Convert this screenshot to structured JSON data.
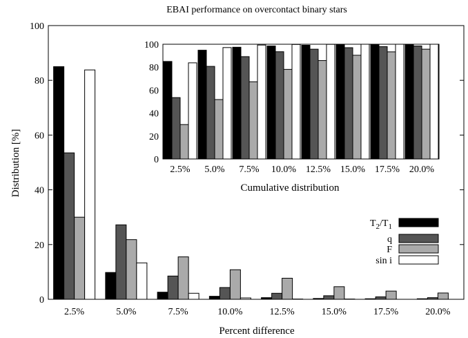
{
  "chart_data": [
    {
      "type": "bar",
      "title": "EBAI performance on overcontact binary stars",
      "xlabel": "Percent difference",
      "ylabel": "Distribution [%]",
      "ylim": [
        0,
        100
      ],
      "yticks": [
        0,
        20,
        40,
        60,
        80,
        100
      ],
      "categories": [
        "2.5%",
        "5.0%",
        "7.5%",
        "10.0%",
        "12.5%",
        "15.0%",
        "17.5%",
        "20.0%"
      ],
      "legend_position": "right",
      "series": [
        {
          "name": "T2/T1",
          "name_main": "T",
          "name_sub1": "2",
          "name_mid": "/T",
          "name_sub2": "1",
          "color": "#000000",
          "values": [
            85.0,
            9.8,
            2.6,
            1.1,
            0.6,
            0.3,
            0.2,
            0.2
          ]
        },
        {
          "name": "q",
          "color": "#555555",
          "values": [
            53.5,
            27.2,
            8.5,
            4.3,
            2.2,
            1.3,
            0.9,
            0.6
          ]
        },
        {
          "name": "F",
          "color": "#aaaaaa",
          "values": [
            30.0,
            21.8,
            15.5,
            10.8,
            7.7,
            4.6,
            3.0,
            2.3
          ]
        },
        {
          "name": "sin i",
          "color": "#ffffff",
          "values": [
            83.8,
            13.3,
            2.2,
            0.5,
            0.1,
            0.1,
            0.0,
            0.0
          ]
        }
      ]
    },
    {
      "type": "bar",
      "title": "",
      "xlabel": "Cumulative distribution",
      "ylabel": "",
      "ylim": [
        0,
        100
      ],
      "yticks": [
        0,
        20,
        40,
        60,
        80,
        100
      ],
      "categories": [
        "2.5%",
        "5.0%",
        "7.5%",
        "10.0%",
        "12.5%",
        "15.0%",
        "17.5%",
        "20.0%"
      ],
      "series": [
        {
          "name": "T2/T1",
          "color": "#000000",
          "values": [
            85.0,
            94.8,
            97.4,
            98.5,
            99.1,
            99.4,
            99.6,
            99.8
          ]
        },
        {
          "name": "q",
          "color": "#555555",
          "values": [
            53.5,
            80.7,
            89.2,
            93.5,
            95.7,
            97.0,
            97.9,
            98.5
          ]
        },
        {
          "name": "F",
          "color": "#aaaaaa",
          "values": [
            30.0,
            51.8,
            67.3,
            78.1,
            85.8,
            90.4,
            93.4,
            95.7
          ]
        },
        {
          "name": "sin i",
          "color": "#ffffff",
          "values": [
            83.8,
            97.1,
            99.3,
            99.8,
            99.9,
            100.0,
            100.0,
            100.0
          ]
        }
      ]
    }
  ]
}
